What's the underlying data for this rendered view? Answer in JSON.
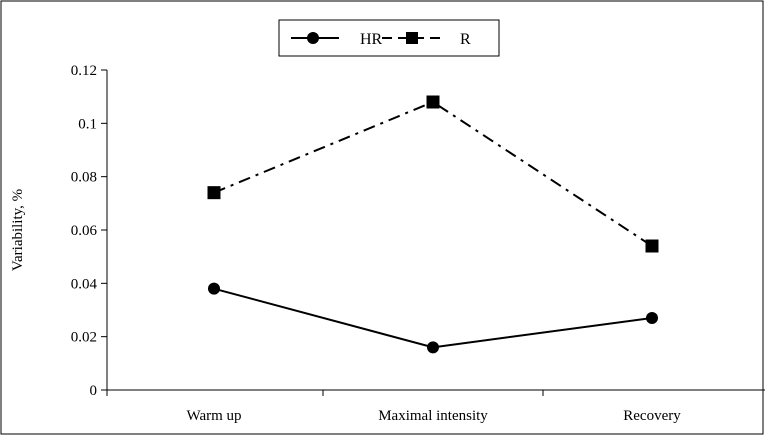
{
  "chart_data": {
    "type": "line",
    "categories": [
      "Warm up",
      "Maximal intensity",
      "Recovery"
    ],
    "series": [
      {
        "name": "HR",
        "values": [
          0.038,
          0.016,
          0.027
        ],
        "line_style": "solid",
        "marker": "circle",
        "color": "#000000"
      },
      {
        "name": "R",
        "values": [
          0.074,
          0.108,
          0.054
        ],
        "line_style": "dash-dot",
        "marker": "square",
        "color": "#000000"
      }
    ],
    "title": "",
    "xlabel": "",
    "ylabel": "Variability, %",
    "ylim": [
      0,
      0.12
    ],
    "yticks": [
      "0",
      "0.02",
      "0.04",
      "0.06",
      "0.08",
      "0.1",
      "0.12"
    ],
    "yticks_values": [
      0,
      0.02,
      0.04,
      0.06,
      0.08,
      0.1,
      0.12
    ],
    "grid": false,
    "legend": "top-center"
  }
}
